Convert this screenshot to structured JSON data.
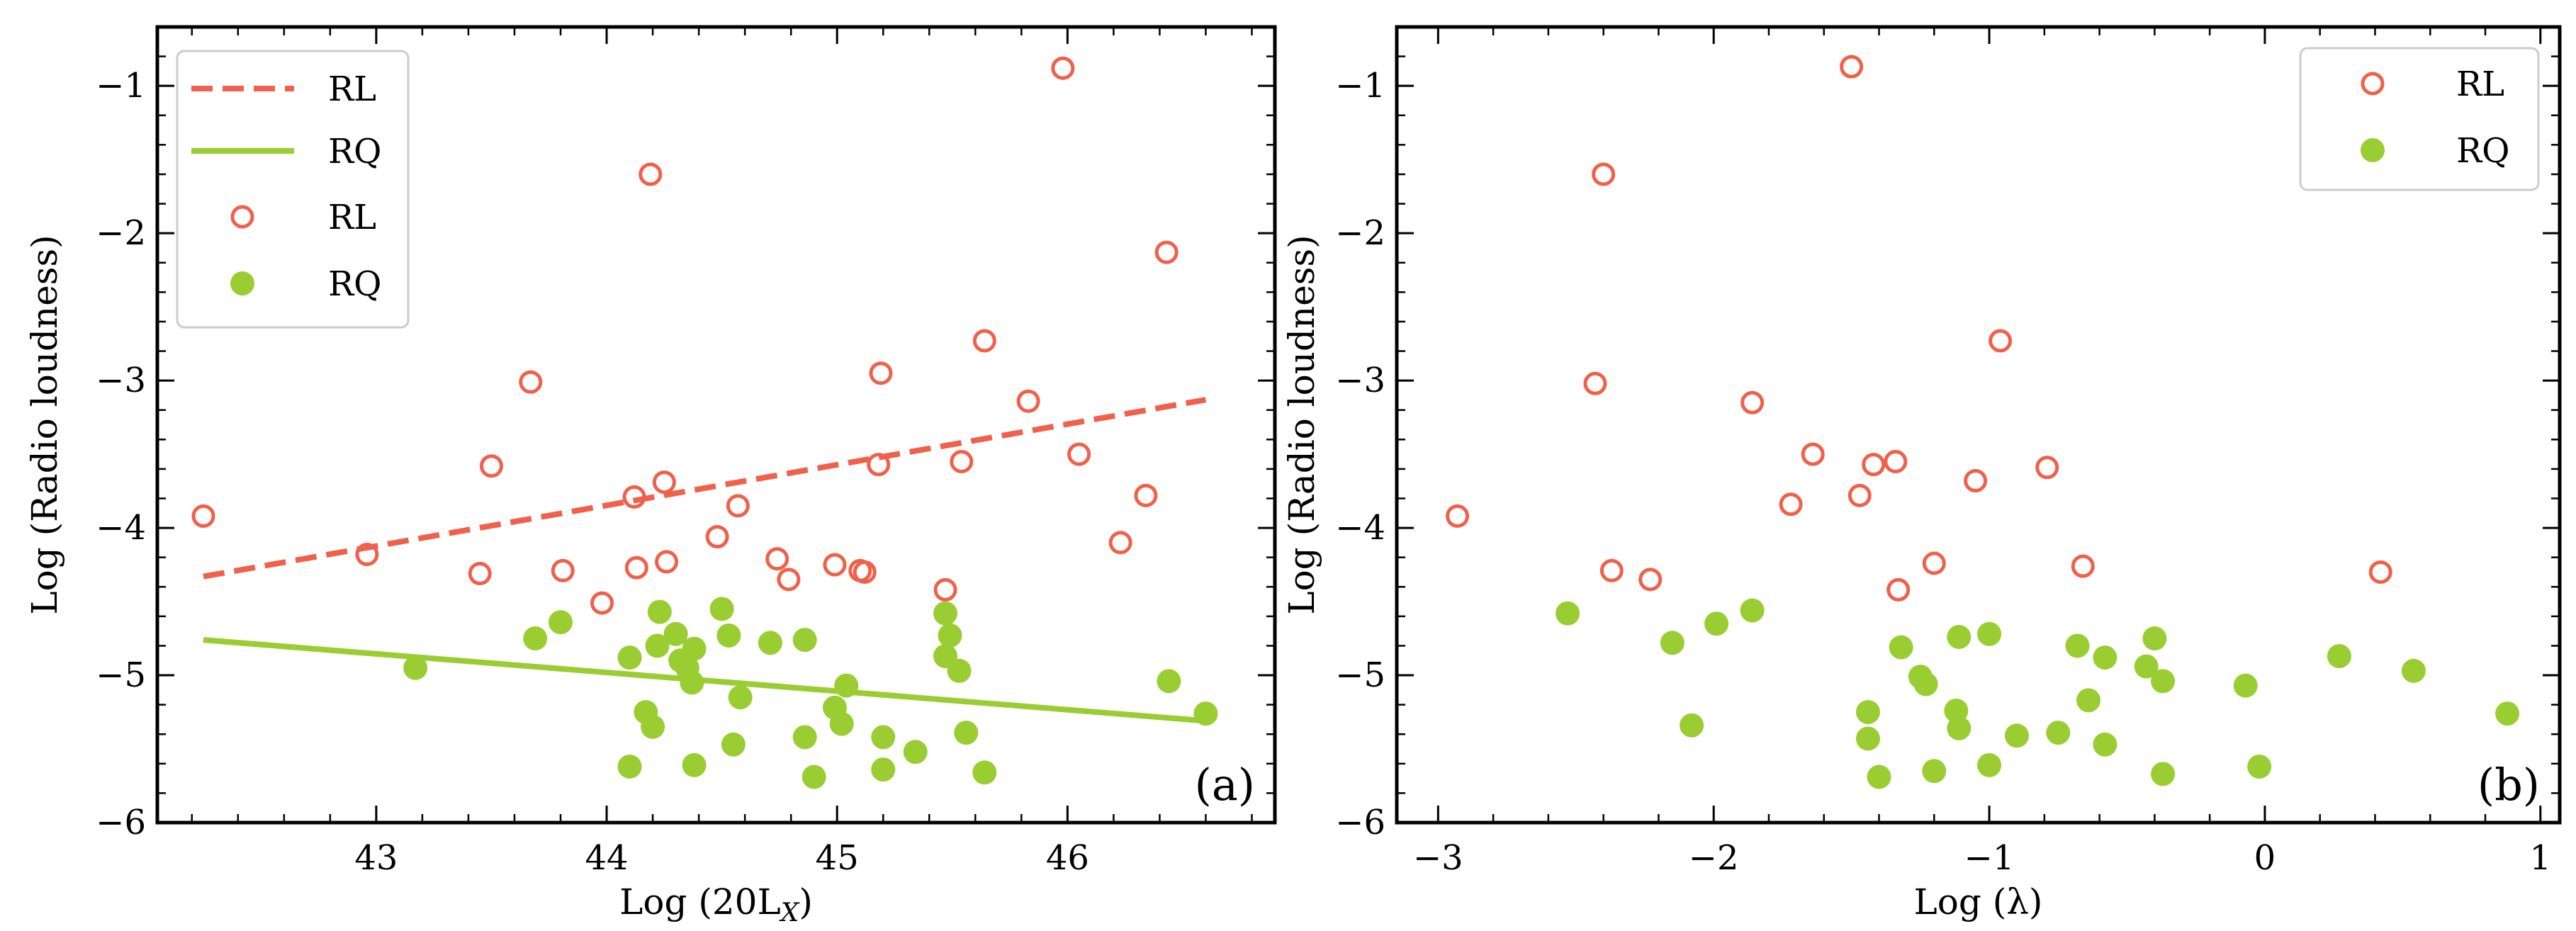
{
  "chart_data": [
    {
      "type": "scatter",
      "panel_label": "(a)",
      "xlabel_main": "Log (20L",
      "xlabel_sub": "X",
      "xlabel_close": ")",
      "ylabel": "Log (Radio loudness)",
      "xlim": [
        42.05,
        46.9
      ],
      "ylim": [
        -6.0,
        -0.6
      ],
      "xticks": [
        43,
        44,
        45,
        46
      ],
      "yticks": [
        -6,
        -5,
        -4,
        -3,
        -2,
        -1
      ],
      "legend": {
        "position": "top-left",
        "entries": [
          "RL",
          "RQ",
          "RL",
          "RQ"
        ]
      },
      "fit_lines": [
        {
          "name": "RL",
          "style": "dashed",
          "color": "#f0604a",
          "x": [
            42.25,
            46.6
          ],
          "y": [
            -4.33,
            -3.13
          ]
        },
        {
          "name": "RQ",
          "style": "solid",
          "color": "#9acd32",
          "x": [
            42.25,
            46.6
          ],
          "y": [
            -4.76,
            -5.31
          ]
        }
      ],
      "series": [
        {
          "name": "RL",
          "marker": "open-circle",
          "color": "#f0604a",
          "points": [
            [
              42.25,
              -3.92
            ],
            [
              42.96,
              -4.18
            ],
            [
              43.45,
              -4.31
            ],
            [
              43.5,
              -3.58
            ],
            [
              43.67,
              -3.01
            ],
            [
              43.81,
              -4.29
            ],
            [
              43.98,
              -4.51
            ],
            [
              44.12,
              -3.79
            ],
            [
              44.13,
              -4.27
            ],
            [
              44.19,
              -1.6
            ],
            [
              44.25,
              -3.69
            ],
            [
              44.26,
              -4.23
            ],
            [
              44.48,
              -4.06
            ],
            [
              44.57,
              -3.85
            ],
            [
              44.74,
              -4.21
            ],
            [
              44.79,
              -4.35
            ],
            [
              44.99,
              -4.25
            ],
            [
              45.1,
              -4.29
            ],
            [
              45.12,
              -4.3
            ],
            [
              45.18,
              -3.57
            ],
            [
              45.19,
              -2.95
            ],
            [
              45.47,
              -4.42
            ],
            [
              45.54,
              -3.55
            ],
            [
              45.64,
              -2.73
            ],
            [
              45.83,
              -3.14
            ],
            [
              45.98,
              -0.88
            ],
            [
              46.05,
              -3.5
            ],
            [
              46.23,
              -4.1
            ],
            [
              46.34,
              -3.78
            ],
            [
              46.43,
              -2.13
            ]
          ]
        },
        {
          "name": "RQ",
          "marker": "filled-circle",
          "color": "#9acd32",
          "points": [
            [
              43.17,
              -4.95
            ],
            [
              43.69,
              -4.75
            ],
            [
              43.8,
              -4.64
            ],
            [
              44.1,
              -4.88
            ],
            [
              44.1,
              -5.62
            ],
            [
              44.17,
              -5.25
            ],
            [
              44.2,
              -5.35
            ],
            [
              44.22,
              -4.8
            ],
            [
              44.23,
              -4.57
            ],
            [
              44.3,
              -4.72
            ],
            [
              44.32,
              -4.9
            ],
            [
              44.35,
              -4.95
            ],
            [
              44.37,
              -5.05
            ],
            [
              44.38,
              -4.82
            ],
            [
              44.38,
              -5.61
            ],
            [
              44.5,
              -4.55
            ],
            [
              44.53,
              -4.73
            ],
            [
              44.55,
              -5.47
            ],
            [
              44.58,
              -5.15
            ],
            [
              44.71,
              -4.78
            ],
            [
              44.86,
              -4.76
            ],
            [
              44.86,
              -5.42
            ],
            [
              44.9,
              -5.69
            ],
            [
              44.99,
              -5.22
            ],
            [
              45.02,
              -5.33
            ],
            [
              45.04,
              -5.07
            ],
            [
              45.2,
              -5.42
            ],
            [
              45.2,
              -5.64
            ],
            [
              45.34,
              -5.52
            ],
            [
              45.47,
              -4.58
            ],
            [
              45.47,
              -4.87
            ],
            [
              45.49,
              -4.73
            ],
            [
              45.53,
              -4.97
            ],
            [
              45.56,
              -5.39
            ],
            [
              45.64,
              -5.66
            ],
            [
              46.44,
              -5.04
            ],
            [
              46.6,
              -5.26
            ]
          ]
        }
      ]
    },
    {
      "type": "scatter",
      "panel_label": "(b)",
      "xlabel_main": "Log (λ)",
      "ylabel": "Log (Radio loudness)",
      "xlim": [
        -3.15,
        1.07
      ],
      "ylim": [
        -6.0,
        -0.6
      ],
      "xticks": [
        -3,
        -2,
        -1,
        0,
        1
      ],
      "xtick_labels": [
        "−3",
        "−2",
        "−1",
        "0",
        "1"
      ],
      "yticks": [
        -6,
        -5,
        -4,
        -3,
        -2,
        -1
      ],
      "legend": {
        "position": "top-right",
        "entries": [
          "RL",
          "RQ"
        ]
      },
      "series": [
        {
          "name": "RL",
          "marker": "open-circle",
          "color": "#f0604a",
          "points": [
            [
              -2.93,
              -3.92
            ],
            [
              -2.43,
              -3.02
            ],
            [
              -2.4,
              -1.6
            ],
            [
              -2.37,
              -4.29
            ],
            [
              -2.23,
              -4.35
            ],
            [
              -1.86,
              -3.15
            ],
            [
              -1.72,
              -3.84
            ],
            [
              -1.64,
              -3.5
            ],
            [
              -1.5,
              -0.87
            ],
            [
              -1.47,
              -3.78
            ],
            [
              -1.42,
              -3.57
            ],
            [
              -1.34,
              -3.55
            ],
            [
              -1.33,
              -4.42
            ],
            [
              -1.2,
              -4.24
            ],
            [
              -1.05,
              -3.68
            ],
            [
              -0.96,
              -2.73
            ],
            [
              -0.79,
              -3.59
            ],
            [
              -0.66,
              -4.26
            ],
            [
              0.42,
              -4.3
            ]
          ]
        },
        {
          "name": "RQ",
          "marker": "filled-circle",
          "color": "#9acd32",
          "points": [
            [
              -2.53,
              -4.58
            ],
            [
              -2.15,
              -4.78
            ],
            [
              -2.08,
              -5.34
            ],
            [
              -1.99,
              -4.65
            ],
            [
              -1.86,
              -4.56
            ],
            [
              -1.44,
              -5.25
            ],
            [
              -1.44,
              -5.43
            ],
            [
              -1.4,
              -5.69
            ],
            [
              -1.32,
              -4.81
            ],
            [
              -1.25,
              -5.01
            ],
            [
              -1.23,
              -5.06
            ],
            [
              -1.2,
              -5.65
            ],
            [
              -1.12,
              -5.24
            ],
            [
              -1.11,
              -5.36
            ],
            [
              -1.11,
              -4.74
            ],
            [
              -1.0,
              -5.61
            ],
            [
              -1.0,
              -4.72
            ],
            [
              -0.9,
              -5.41
            ],
            [
              -0.75,
              -5.39
            ],
            [
              -0.68,
              -4.8
            ],
            [
              -0.64,
              -5.17
            ],
            [
              -0.58,
              -5.47
            ],
            [
              -0.58,
              -4.88
            ],
            [
              -0.43,
              -4.94
            ],
            [
              -0.4,
              -4.75
            ],
            [
              -0.37,
              -5.04
            ],
            [
              -0.37,
              -5.67
            ],
            [
              -0.07,
              -5.07
            ],
            [
              -0.02,
              -5.62
            ],
            [
              0.27,
              -4.87
            ],
            [
              0.54,
              -4.97
            ],
            [
              0.88,
              -5.26
            ]
          ]
        }
      ]
    }
  ]
}
